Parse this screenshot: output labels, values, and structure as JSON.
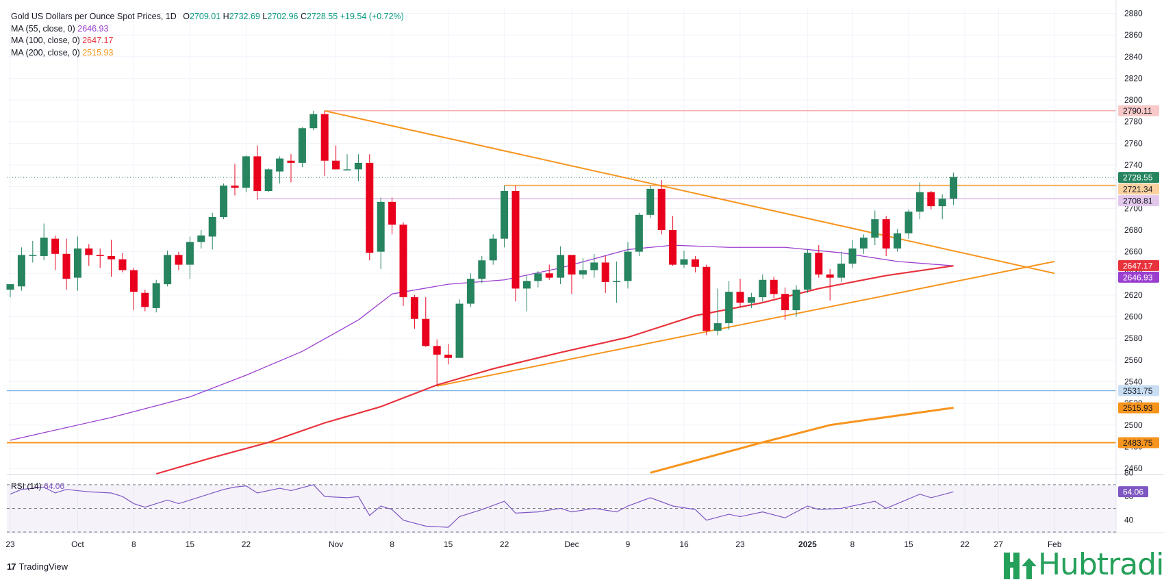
{
  "legend": {
    "title": "Gold US Dollars per Ounce Spot Prices, 1D",
    "ohlc": {
      "o_label": "O",
      "o": "2709.01",
      "h_label": "H",
      "h": "2732.69",
      "l_label": "L",
      "l": "2702.96",
      "c_label": "C",
      "c": "2728.55",
      "change": "+19.54 (+0.72%)"
    },
    "ma55_label": "MA (55, close, 0)",
    "ma55_value": "2646.93",
    "ma100_label": "MA (100, close, 0)",
    "ma100_value": "2647.17",
    "ma200_label": "MA (200, close, 0)",
    "ma200_value": "2515.93",
    "rsi_label": "RSI (14)",
    "rsi_value": "64.06"
  },
  "colors": {
    "up": "#26845f",
    "down": "#e8001c",
    "ma55": "#9b3fcf",
    "ma100": "#e8323c",
    "ma200": "#f7941d",
    "trendline": "#f7941d",
    "rsi": "#7e57c2"
  },
  "branding": {
    "tradingview": "TradingView",
    "hubtrading": "Hubtrading"
  },
  "chart_data": {
    "type": "candlestick",
    "title": "Gold US Dollars per Ounce Spot Prices, 1D",
    "y_ticks": [
      2460,
      2480,
      2500,
      2520,
      2540,
      2560,
      2580,
      2600,
      2620,
      2640,
      2660,
      2680,
      2700,
      2720,
      2740,
      2760,
      2780,
      2800,
      2820,
      2840,
      2860,
      2880
    ],
    "ylim": [
      2455,
      2886
    ],
    "x_tick_labels": [
      "23",
      "Oct",
      "8",
      "15",
      "22",
      "Nov",
      "8",
      "15",
      "22",
      "Dec",
      "9",
      "16",
      "23",
      "2025",
      "8",
      "15",
      "22",
      "27",
      "Feb"
    ],
    "candles": [
      {
        "date": "Sep 23",
        "o": 2625,
        "h": 2630,
        "l": 2618,
        "c": 2630
      },
      {
        "date": "Sep 24",
        "o": 2628,
        "h": 2664,
        "l": 2624,
        "c": 2657
      },
      {
        "date": "Sep 25",
        "o": 2657,
        "h": 2670,
        "l": 2650,
        "c": 2657
      },
      {
        "date": "Sep 26",
        "o": 2656,
        "h": 2686,
        "l": 2652,
        "c": 2673
      },
      {
        "date": "Sep 27",
        "o": 2672,
        "h": 2675,
        "l": 2643,
        "c": 2658
      },
      {
        "date": "Sep 30",
        "o": 2658,
        "h": 2672,
        "l": 2625,
        "c": 2635
      },
      {
        "date": "Oct 1",
        "o": 2636,
        "h": 2674,
        "l": 2624,
        "c": 2663
      },
      {
        "date": "Oct 2",
        "o": 2663,
        "h": 2667,
        "l": 2647,
        "c": 2657
      },
      {
        "date": "Oct 3",
        "o": 2657,
        "h": 2663,
        "l": 2645,
        "c": 2656
      },
      {
        "date": "Oct 4",
        "o": 2656,
        "h": 2671,
        "l": 2637,
        "c": 2653
      },
      {
        "date": "Oct 7",
        "o": 2653,
        "h": 2659,
        "l": 2641,
        "c": 2643
      },
      {
        "date": "Oct 8",
        "o": 2643,
        "h": 2645,
        "l": 2606,
        "c": 2623
      },
      {
        "date": "Oct 9",
        "o": 2622,
        "h": 2625,
        "l": 2605,
        "c": 2609
      },
      {
        "date": "Oct 10",
        "o": 2608,
        "h": 2634,
        "l": 2604,
        "c": 2631
      },
      {
        "date": "Oct 11",
        "o": 2630,
        "h": 2661,
        "l": 2628,
        "c": 2657
      },
      {
        "date": "Oct 14",
        "o": 2657,
        "h": 2660,
        "l": 2643,
        "c": 2648
      },
      {
        "date": "Oct 15",
        "o": 2648,
        "h": 2674,
        "l": 2635,
        "c": 2669
      },
      {
        "date": "Oct 16",
        "o": 2669,
        "h": 2680,
        "l": 2663,
        "c": 2675
      },
      {
        "date": "Oct 17",
        "o": 2674,
        "h": 2696,
        "l": 2662,
        "c": 2692
      },
      {
        "date": "Oct 18",
        "o": 2692,
        "h": 2723,
        "l": 2690,
        "c": 2721
      },
      {
        "date": "Oct 21",
        "o": 2721,
        "h": 2741,
        "l": 2712,
        "c": 2719
      },
      {
        "date": "Oct 22",
        "o": 2719,
        "h": 2749,
        "l": 2715,
        "c": 2748
      },
      {
        "date": "Oct 23",
        "o": 2748,
        "h": 2758,
        "l": 2708,
        "c": 2716
      },
      {
        "date": "Oct 24",
        "o": 2716,
        "h": 2737,
        "l": 2715,
        "c": 2736
      },
      {
        "date": "Oct 25",
        "o": 2734,
        "h": 2748,
        "l": 2723,
        "c": 2746
      },
      {
        "date": "Oct 28",
        "o": 2744,
        "h": 2750,
        "l": 2724,
        "c": 2742
      },
      {
        "date": "Oct 29",
        "o": 2742,
        "h": 2775,
        "l": 2738,
        "c": 2774
      },
      {
        "date": "Oct 30",
        "o": 2774,
        "h": 2790,
        "l": 2772,
        "c": 2787
      },
      {
        "date": "Oct 31",
        "o": 2787,
        "h": 2790,
        "l": 2730,
        "c": 2744
      },
      {
        "date": "Nov 1",
        "o": 2744,
        "h": 2758,
        "l": 2736,
        "c": 2736
      },
      {
        "date": "Nov 4",
        "o": 2736,
        "h": 2750,
        "l": 2735,
        "c": 2736
      },
      {
        "date": "Nov 5",
        "o": 2736,
        "h": 2750,
        "l": 2725,
        "c": 2742
      },
      {
        "date": "Nov 6",
        "o": 2742,
        "h": 2750,
        "l": 2652,
        "c": 2659
      },
      {
        "date": "Nov 7",
        "o": 2660,
        "h": 2710,
        "l": 2644,
        "c": 2706
      },
      {
        "date": "Nov 8",
        "o": 2706,
        "h": 2710,
        "l": 2676,
        "c": 2685
      },
      {
        "date": "Nov 11",
        "o": 2685,
        "h": 2687,
        "l": 2610,
        "c": 2618
      },
      {
        "date": "Nov 12",
        "o": 2618,
        "h": 2620,
        "l": 2589,
        "c": 2598
      },
      {
        "date": "Nov 13",
        "o": 2598,
        "h": 2618,
        "l": 2572,
        "c": 2573
      },
      {
        "date": "Nov 14",
        "o": 2573,
        "h": 2579,
        "l": 2536,
        "c": 2565
      },
      {
        "date": "Nov 15",
        "o": 2565,
        "h": 2575,
        "l": 2556,
        "c": 2562
      },
      {
        "date": "Nov 18",
        "o": 2562,
        "h": 2616,
        "l": 2562,
        "c": 2612
      },
      {
        "date": "Nov 19",
        "o": 2612,
        "h": 2640,
        "l": 2609,
        "c": 2635
      },
      {
        "date": "Nov 20",
        "o": 2635,
        "h": 2656,
        "l": 2631,
        "c": 2652
      },
      {
        "date": "Nov 21",
        "o": 2652,
        "h": 2676,
        "l": 2648,
        "c": 2672
      },
      {
        "date": "Nov 22",
        "o": 2672,
        "h": 2721,
        "l": 2664,
        "c": 2716
      },
      {
        "date": "Nov 25",
        "o": 2716,
        "h": 2721,
        "l": 2614,
        "c": 2626
      },
      {
        "date": "Nov 26",
        "o": 2626,
        "h": 2638,
        "l": 2605,
        "c": 2633
      },
      {
        "date": "Nov 27",
        "o": 2633,
        "h": 2642,
        "l": 2627,
        "c": 2640
      },
      {
        "date": "Nov 28",
        "o": 2640,
        "h": 2648,
        "l": 2634,
        "c": 2636
      },
      {
        "date": "Nov 29",
        "o": 2636,
        "h": 2665,
        "l": 2630,
        "c": 2657
      },
      {
        "date": "Dec 2",
        "o": 2657,
        "h": 2657,
        "l": 2621,
        "c": 2639
      },
      {
        "date": "Dec 3",
        "o": 2639,
        "h": 2654,
        "l": 2635,
        "c": 2643
      },
      {
        "date": "Dec 4",
        "o": 2643,
        "h": 2658,
        "l": 2636,
        "c": 2650
      },
      {
        "date": "Dec 5",
        "o": 2650,
        "h": 2656,
        "l": 2622,
        "c": 2632
      },
      {
        "date": "Dec 6",
        "o": 2632,
        "h": 2651,
        "l": 2613,
        "c": 2633
      },
      {
        "date": "Dec 9",
        "o": 2633,
        "h": 2669,
        "l": 2626,
        "c": 2660
      },
      {
        "date": "Dec 10",
        "o": 2660,
        "h": 2696,
        "l": 2656,
        "c": 2694
      },
      {
        "date": "Dec 11",
        "o": 2694,
        "h": 2721,
        "l": 2691,
        "c": 2718
      },
      {
        "date": "Dec 12",
        "o": 2718,
        "h": 2726,
        "l": 2676,
        "c": 2680
      },
      {
        "date": "Dec 13",
        "o": 2680,
        "h": 2693,
        "l": 2647,
        "c": 2648
      },
      {
        "date": "Dec 16",
        "o": 2648,
        "h": 2661,
        "l": 2645,
        "c": 2653
      },
      {
        "date": "Dec 17",
        "o": 2653,
        "h": 2656,
        "l": 2641,
        "c": 2646
      },
      {
        "date": "Dec 18",
        "o": 2646,
        "h": 2648,
        "l": 2583,
        "c": 2587
      },
      {
        "date": "Dec 19",
        "o": 2587,
        "h": 2626,
        "l": 2583,
        "c": 2594
      },
      {
        "date": "Dec 20",
        "o": 2594,
        "h": 2633,
        "l": 2588,
        "c": 2623
      },
      {
        "date": "Dec 23",
        "o": 2623,
        "h": 2635,
        "l": 2609,
        "c": 2613
      },
      {
        "date": "Dec 24",
        "o": 2613,
        "h": 2622,
        "l": 2608,
        "c": 2618
      },
      {
        "date": "Dec 26",
        "o": 2618,
        "h": 2639,
        "l": 2614,
        "c": 2634
      },
      {
        "date": "Dec 27",
        "o": 2634,
        "h": 2637,
        "l": 2617,
        "c": 2621
      },
      {
        "date": "Dec 30",
        "o": 2621,
        "h": 2627,
        "l": 2597,
        "c": 2606
      },
      {
        "date": "Dec 31",
        "o": 2606,
        "h": 2629,
        "l": 2600,
        "c": 2625
      },
      {
        "date": "Jan 2",
        "o": 2625,
        "h": 2662,
        "l": 2622,
        "c": 2659
      },
      {
        "date": "Jan 3",
        "o": 2659,
        "h": 2666,
        "l": 2636,
        "c": 2639
      },
      {
        "date": "Jan 6",
        "o": 2639,
        "h": 2644,
        "l": 2615,
        "c": 2636
      },
      {
        "date": "Jan 7",
        "o": 2636,
        "h": 2660,
        "l": 2632,
        "c": 2649
      },
      {
        "date": "Jan 8",
        "o": 2649,
        "h": 2671,
        "l": 2645,
        "c": 2663
      },
      {
        "date": "Jan 9",
        "o": 2663,
        "h": 2676,
        "l": 2658,
        "c": 2673
      },
      {
        "date": "Jan 10",
        "o": 2673,
        "h": 2698,
        "l": 2666,
        "c": 2690
      },
      {
        "date": "Jan 13",
        "o": 2690,
        "h": 2693,
        "l": 2656,
        "c": 2663
      },
      {
        "date": "Jan 14",
        "o": 2663,
        "h": 2681,
        "l": 2660,
        "c": 2677
      },
      {
        "date": "Jan 15",
        "o": 2677,
        "h": 2699,
        "l": 2672,
        "c": 2697
      },
      {
        "date": "Jan 16",
        "o": 2697,
        "h": 2724,
        "l": 2690,
        "c": 2715
      },
      {
        "date": "Jan 17",
        "o": 2715,
        "h": 2716,
        "l": 2699,
        "c": 2702
      },
      {
        "date": "Jan 20",
        "o": 2702,
        "h": 2713,
        "l": 2690,
        "c": 2709
      },
      {
        "date": "Jan 21",
        "o": 2709,
        "h": 2733,
        "l": 2703,
        "c": 2729
      }
    ],
    "ma55": [
      {
        "date": "Sep 23",
        "v": 2486
      },
      {
        "date": "Oct 4",
        "v": 2507
      },
      {
        "date": "Oct 15",
        "v": 2526
      },
      {
        "date": "Oct 22",
        "v": 2546
      },
      {
        "date": "Oct 29",
        "v": 2568
      },
      {
        "date": "Nov 5",
        "v": 2597
      },
      {
        "date": "Nov 8",
        "v": 2621
      },
      {
        "date": "Nov 15",
        "v": 2630
      },
      {
        "date": "Nov 22",
        "v": 2634
      },
      {
        "date": "Nov 29",
        "v": 2645
      },
      {
        "date": "Dec 9",
        "v": 2662
      },
      {
        "date": "Dec 13",
        "v": 2666
      },
      {
        "date": "Dec 20",
        "v": 2664
      },
      {
        "date": "Dec 30",
        "v": 2664
      },
      {
        "date": "Jan 7",
        "v": 2659
      },
      {
        "date": "Jan 14",
        "v": 2651
      },
      {
        "date": "Jan 21",
        "v": 2647
      }
    ],
    "ma100": [
      {
        "date": "Oct 10",
        "v": 2455
      },
      {
        "date": "Oct 17",
        "v": 2470
      },
      {
        "date": "Oct 24",
        "v": 2484
      },
      {
        "date": "Oct 31",
        "v": 2502
      },
      {
        "date": "Nov 7",
        "v": 2517
      },
      {
        "date": "Nov 14",
        "v": 2537
      },
      {
        "date": "Nov 21",
        "v": 2552
      },
      {
        "date": "Nov 29",
        "v": 2567
      },
      {
        "date": "Dec 9",
        "v": 2581
      },
      {
        "date": "Dec 17",
        "v": 2601
      },
      {
        "date": "Dec 26",
        "v": 2613
      },
      {
        "date": "Jan 3",
        "v": 2626
      },
      {
        "date": "Jan 13",
        "v": 2638
      },
      {
        "date": "Jan 21",
        "v": 2647
      }
    ],
    "ma200": [
      {
        "date": "Dec 11",
        "v": 2456
      },
      {
        "date": "Dec 26",
        "v": 2484
      },
      {
        "date": "Jan 6",
        "v": 2500
      },
      {
        "date": "Jan 21",
        "v": 2516
      }
    ],
    "horizontal_levels": [
      {
        "value": 2790.11,
        "color": "#f4a3a3"
      },
      {
        "value": 2721.34,
        "color": "#f7941d"
      },
      {
        "value": 2708.81,
        "color": "#d7a6e0"
      },
      {
        "value": 2531.75,
        "color": "#7fb6e6"
      },
      {
        "value": 2483.75,
        "color": "#f7941d"
      }
    ],
    "trendlines": [
      {
        "from": {
          "date": "Oct 31",
          "v": 2790
        },
        "to": {
          "date": "Feb 3",
          "v": 2640
        }
      },
      {
        "from": {
          "date": "Nov 14",
          "v": 2536
        },
        "to": {
          "date": "Feb 3",
          "v": 2651
        }
      }
    ],
    "current_price": 2728.55,
    "price_labels": [
      {
        "value": 2790.11,
        "text": "2790.11",
        "bg": "#f9c9c9",
        "fg": "#131722"
      },
      {
        "value": 2728.55,
        "text": "2728.55",
        "bg": "#26845f",
        "fg": "#ffffff"
      },
      {
        "value": 2721.34,
        "text": "2721.34",
        "bg": "#fbd1a0",
        "fg": "#131722"
      },
      {
        "value": 2708.81,
        "text": "2708.81",
        "bg": "#e3c8eb",
        "fg": "#131722"
      },
      {
        "value": 2647.17,
        "text": "2647.17",
        "bg": "#e8323c",
        "fg": "#ffffff"
      },
      {
        "value": 2646.93,
        "text": "2646.93",
        "bg": "#9b3fcf",
        "fg": "#ffffff"
      },
      {
        "value": 2531.75,
        "text": "2531.75",
        "bg": "#c9def3",
        "fg": "#131722"
      },
      {
        "value": 2515.93,
        "text": "2515.93",
        "bg": "#f7941d",
        "fg": "#131722"
      },
      {
        "value": 2483.75,
        "text": "2483.75",
        "bg": "#f7941d",
        "fg": "#131722"
      }
    ],
    "rsi": {
      "label": "RSI (14)",
      "y_ticks": [
        40,
        60,
        80
      ],
      "ylim": [
        30,
        85
      ],
      "bands": [
        30,
        50,
        70
      ],
      "current": 64.06,
      "points": [
        {
          "date": "Sep 23",
          "v": 62
        },
        {
          "date": "Sep 24",
          "v": 66
        },
        {
          "date": "Sep 26",
          "v": 68
        },
        {
          "date": "Sep 27",
          "v": 63
        },
        {
          "date": "Sep 30",
          "v": 66
        },
        {
          "date": "Oct 2",
          "v": 64
        },
        {
          "date": "Oct 4",
          "v": 63
        },
        {
          "date": "Oct 7",
          "v": 60
        },
        {
          "date": "Oct 8",
          "v": 54
        },
        {
          "date": "Oct 9",
          "v": 51
        },
        {
          "date": "Oct 11",
          "v": 57
        },
        {
          "date": "Oct 14",
          "v": 54
        },
        {
          "date": "Oct 16",
          "v": 60
        },
        {
          "date": "Oct 18",
          "v": 66
        },
        {
          "date": "Oct 21",
          "v": 68
        },
        {
          "date": "Oct 22",
          "v": 69
        },
        {
          "date": "Oct 23",
          "v": 63
        },
        {
          "date": "Oct 25",
          "v": 67
        },
        {
          "date": "Oct 28",
          "v": 65
        },
        {
          "date": "Oct 30",
          "v": 70
        },
        {
          "date": "Oct 31",
          "v": 60
        },
        {
          "date": "Nov 4",
          "v": 59
        },
        {
          "date": "Nov 5",
          "v": 60
        },
        {
          "date": "Nov 6",
          "v": 44
        },
        {
          "date": "Nov 7",
          "v": 52
        },
        {
          "date": "Nov 8",
          "v": 49
        },
        {
          "date": "Nov 11",
          "v": 40
        },
        {
          "date": "Nov 13",
          "v": 35
        },
        {
          "date": "Nov 15",
          "v": 34
        },
        {
          "date": "Nov 18",
          "v": 43
        },
        {
          "date": "Nov 20",
          "v": 49
        },
        {
          "date": "Nov 22",
          "v": 56
        },
        {
          "date": "Nov 25",
          "v": 46
        },
        {
          "date": "Nov 27",
          "v": 47
        },
        {
          "date": "Nov 29",
          "v": 50
        },
        {
          "date": "Dec 2",
          "v": 47
        },
        {
          "date": "Dec 4",
          "v": 50
        },
        {
          "date": "Dec 6",
          "v": 47
        },
        {
          "date": "Dec 9",
          "v": 52
        },
        {
          "date": "Dec 11",
          "v": 59
        },
        {
          "date": "Dec 13",
          "v": 52
        },
        {
          "date": "Dec 17",
          "v": 49
        },
        {
          "date": "Dec 18",
          "v": 40
        },
        {
          "date": "Dec 20",
          "v": 45
        },
        {
          "date": "Dec 23",
          "v": 43
        },
        {
          "date": "Dec 26",
          "v": 47
        },
        {
          "date": "Dec 30",
          "v": 42
        },
        {
          "date": "Jan 2",
          "v": 52
        },
        {
          "date": "Jan 3",
          "v": 49
        },
        {
          "date": "Jan 7",
          "v": 50
        },
        {
          "date": "Jan 10",
          "v": 56
        },
        {
          "date": "Jan 13",
          "v": 50
        },
        {
          "date": "Jan 16",
          "v": 62
        },
        {
          "date": "Jan 17",
          "v": 59
        },
        {
          "date": "Jan 21",
          "v": 64
        }
      ]
    }
  }
}
